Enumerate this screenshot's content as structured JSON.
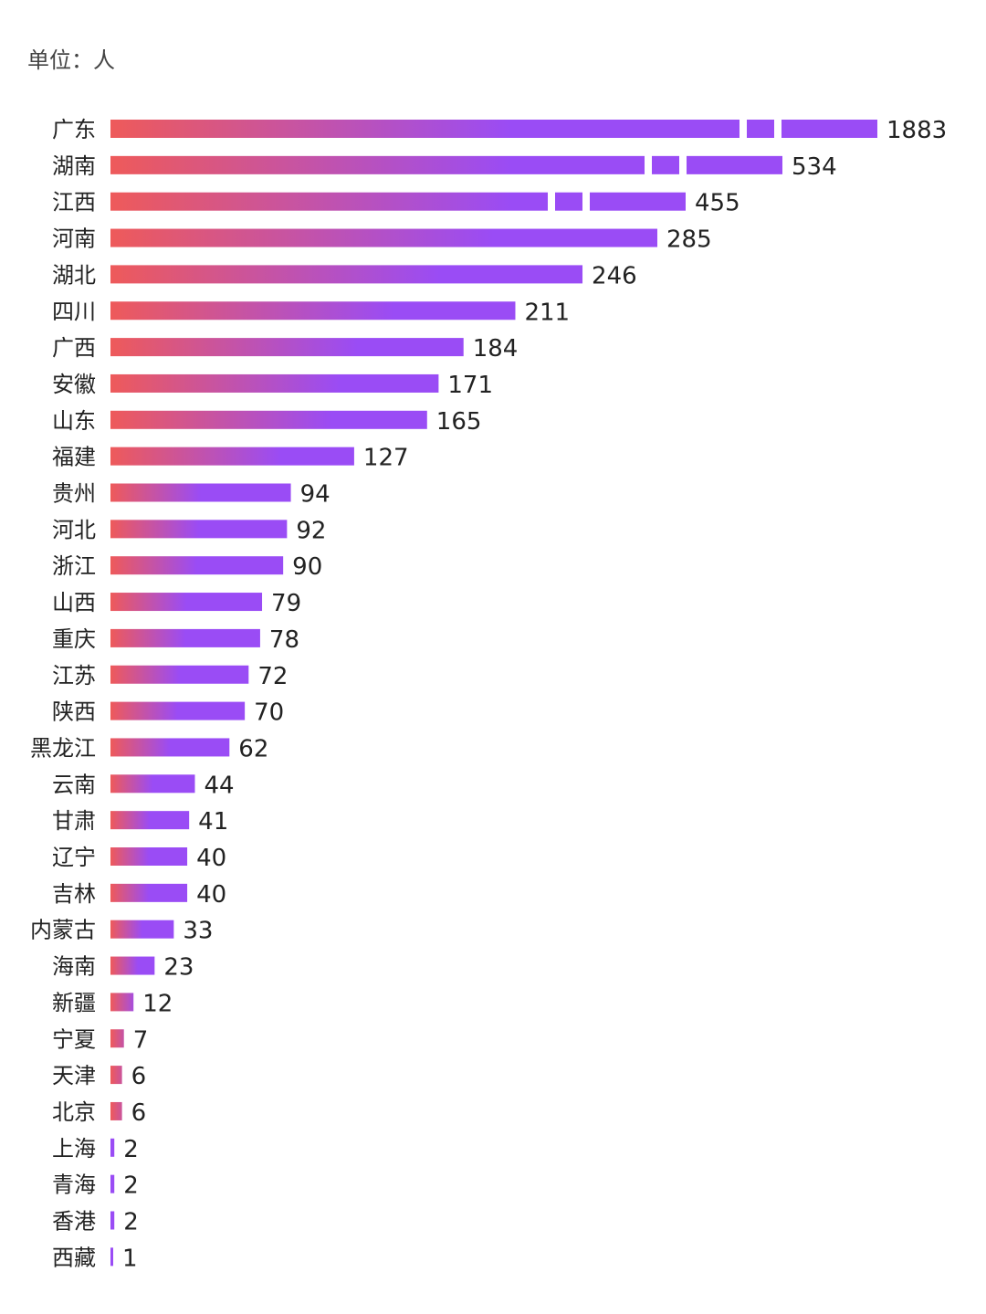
{
  "unit_label": "单位：人",
  "colors": {
    "bar_start": "#ee5a5a",
    "bar_end": "#9a4cf5"
  },
  "chart_data": {
    "type": "bar",
    "orientation": "horizontal",
    "title": "",
    "xlabel": "",
    "ylabel": "",
    "unit": "人",
    "grid": false,
    "axis_break": true,
    "categories": [
      "广东",
      "湖南",
      "江西",
      "河南",
      "湖北",
      "四川",
      "广西",
      "安徽",
      "山东",
      "福建",
      "贵州",
      "河北",
      "浙江",
      "山西",
      "重庆",
      "江苏",
      "陕西",
      "黑龙江",
      "云南",
      "甘肃",
      "辽宁",
      "吉林",
      "内蒙古",
      "海南",
      "新疆",
      "宁夏",
      "天津",
      "北京",
      "上海",
      "青海",
      "香港",
      "西藏"
    ],
    "values": [
      1883,
      534,
      455,
      285,
      246,
      211,
      184,
      171,
      165,
      127,
      94,
      92,
      90,
      79,
      78,
      72,
      70,
      62,
      44,
      41,
      40,
      40,
      33,
      23,
      12,
      7,
      6,
      6,
      2,
      2,
      2,
      1
    ]
  }
}
